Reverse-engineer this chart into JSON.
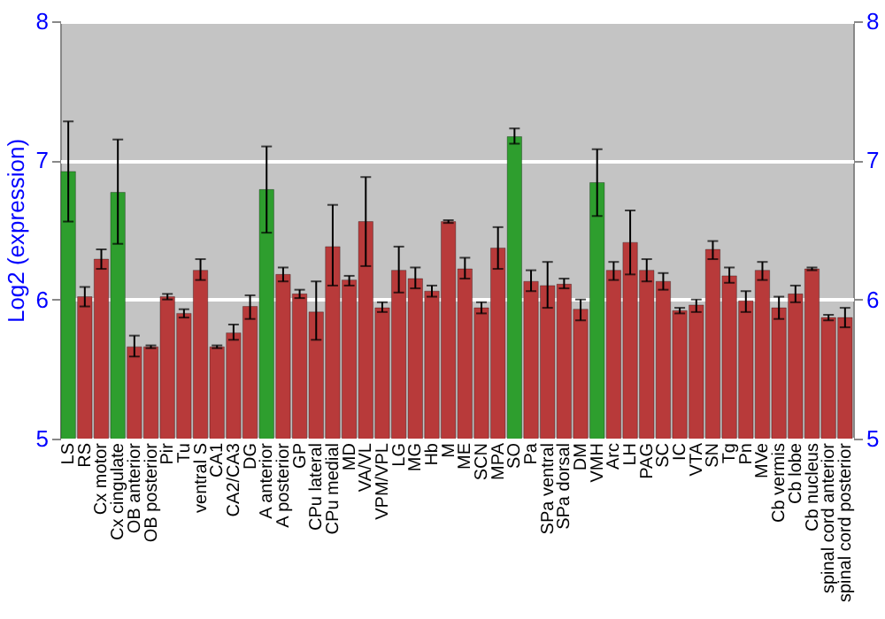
{
  "chart_data": {
    "type": "bar",
    "ylabel": "Log2 (expression)",
    "categories": [
      "LS",
      "RS",
      "Cx motor",
      "Cx cingulate",
      "OB anterior",
      "OB posterior",
      "Pir",
      "Tu",
      "ventral S",
      "CA1",
      "CA2/CA3",
      "DG",
      "A anterior",
      "A posterior",
      "GP",
      "CPu lateral",
      "CPu medial",
      "MD",
      "VA/VL",
      "VPM/VPL",
      "LG",
      "MG",
      "Hb",
      "M",
      "ME",
      "SCN",
      "MPA",
      "SO",
      "Pa",
      "SPa ventral",
      "SPa dorsal",
      "DM",
      "VMH",
      "Arc",
      "LH",
      "PAG",
      "SC",
      "IC",
      "VTA",
      "SN",
      "Tg",
      "Pn",
      "MVe",
      "Cb vermis",
      "Cb lobe",
      "Cb nucleus",
      "spinal cord anterior",
      "spinal cord posterior"
    ],
    "values": [
      6.92,
      6.02,
      6.29,
      6.77,
      5.66,
      5.66,
      6.02,
      5.9,
      6.21,
      5.66,
      5.76,
      5.95,
      6.79,
      6.18,
      6.04,
      5.91,
      6.38,
      6.14,
      6.56,
      5.94,
      6.21,
      6.15,
      6.06,
      6.56,
      6.22,
      5.94,
      6.37,
      7.17,
      6.13,
      6.1,
      6.11,
      5.93,
      6.84,
      6.21,
      6.41,
      6.21,
      6.13,
      5.92,
      5.96,
      6.36,
      6.17,
      5.99,
      6.21,
      5.94,
      6.04,
      6.22,
      5.87,
      5.87
    ],
    "colors": [
      "#2e9e2e",
      "#b83a3a",
      "#b83a3a",
      "#2e9e2e",
      "#b83a3a",
      "#b83a3a",
      "#b83a3a",
      "#b83a3a",
      "#b83a3a",
      "#b83a3a",
      "#b83a3a",
      "#b83a3a",
      "#2e9e2e",
      "#b83a3a",
      "#b83a3a",
      "#b83a3a",
      "#b83a3a",
      "#b83a3a",
      "#b83a3a",
      "#b83a3a",
      "#b83a3a",
      "#b83a3a",
      "#b83a3a",
      "#b83a3a",
      "#b83a3a",
      "#b83a3a",
      "#b83a3a",
      "#2e9e2e",
      "#b83a3a",
      "#b83a3a",
      "#b83a3a",
      "#b83a3a",
      "#2e9e2e",
      "#b83a3a",
      "#b83a3a",
      "#b83a3a",
      "#b83a3a",
      "#b83a3a",
      "#b83a3a",
      "#b83a3a",
      "#b83a3a",
      "#b83a3a",
      "#b83a3a",
      "#b83a3a",
      "#b83a3a",
      "#b83a3a",
      "#b83a3a",
      "#b83a3a"
    ],
    "errors": [
      [
        6.56,
        7.28
      ],
      [
        5.95,
        6.09
      ],
      [
        6.22,
        6.36
      ],
      [
        6.4,
        7.15
      ],
      [
        5.59,
        5.74
      ],
      [
        5.65,
        5.67
      ],
      [
        6.0,
        6.04
      ],
      [
        5.87,
        5.93
      ],
      [
        6.14,
        6.29
      ],
      [
        5.65,
        5.67
      ],
      [
        5.71,
        5.82
      ],
      [
        5.86,
        6.03
      ],
      [
        6.48,
        7.1
      ],
      [
        6.13,
        6.23
      ],
      [
        6.01,
        6.07
      ],
      [
        5.71,
        6.13
      ],
      [
        6.1,
        6.68
      ],
      [
        6.1,
        6.17
      ],
      [
        6.24,
        6.88
      ],
      [
        5.91,
        5.98
      ],
      [
        6.05,
        6.38
      ],
      [
        6.08,
        6.23
      ],
      [
        6.02,
        6.1
      ],
      [
        6.55,
        6.57
      ],
      [
        6.15,
        6.3
      ],
      [
        5.9,
        5.98
      ],
      [
        6.22,
        6.52
      ],
      [
        7.12,
        7.23
      ],
      [
        6.06,
        6.21
      ],
      [
        5.94,
        6.27
      ],
      [
        6.08,
        6.15
      ],
      [
        5.85,
        6.0
      ],
      [
        6.6,
        7.08
      ],
      [
        6.14,
        6.27
      ],
      [
        6.18,
        6.64
      ],
      [
        6.13,
        6.29
      ],
      [
        6.07,
        6.19
      ],
      [
        5.9,
        5.94
      ],
      [
        5.91,
        6.0
      ],
      [
        6.29,
        6.42
      ],
      [
        6.12,
        6.23
      ],
      [
        5.91,
        6.06
      ],
      [
        6.14,
        6.27
      ],
      [
        5.86,
        6.02
      ],
      [
        5.98,
        6.1
      ],
      [
        6.21,
        6.23
      ],
      [
        5.85,
        5.89
      ],
      [
        5.8,
        5.94
      ]
    ],
    "ylim": [
      5,
      8
    ],
    "yticks": [
      5,
      6,
      7,
      8
    ],
    "y2lim": [
      5,
      8
    ],
    "y2ticks": [
      5,
      6,
      7,
      8
    ],
    "grid": "y"
  }
}
